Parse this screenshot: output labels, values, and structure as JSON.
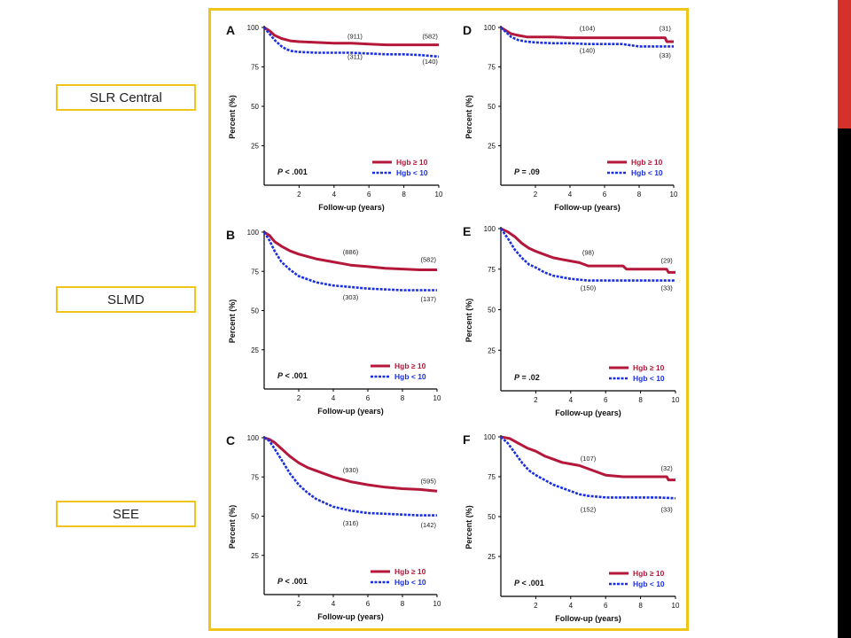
{
  "side_labels": [
    "SLR Central",
    "SLMD",
    "SEE"
  ],
  "colors": {
    "frame": "#f0c419",
    "hgb_high": "#b5173a",
    "hgb_low": "#1a2fe0",
    "accent_red": "#d6302b"
  },
  "legend": {
    "high": "Hgb ≥ 10",
    "low": "Hgb < 10"
  },
  "chart_data": [
    {
      "panel": "A",
      "type": "line",
      "xlabel": "Follow-up (years)",
      "ylabel": "Percent (%)",
      "xlim": [
        0,
        10
      ],
      "ylim": [
        0,
        100
      ],
      "xticks": [
        2,
        4,
        6,
        8,
        10
      ],
      "yticks": [
        25,
        50,
        75,
        100
      ],
      "p_value": ".001",
      "p_prefix": "P < ",
      "series": [
        {
          "name": "Hgb ≥ 10",
          "x": [
            0,
            0.3,
            0.6,
            1,
            1.5,
            2,
            3,
            4,
            5,
            6,
            7,
            8,
            9,
            10
          ],
          "y": [
            100,
            98,
            95,
            93,
            91.5,
            91,
            90.5,
            90,
            90,
            89.5,
            89,
            89,
            89,
            89
          ]
        },
        {
          "name": "Hgb < 10",
          "x": [
            0,
            0.3,
            0.6,
            1,
            1.3,
            1.6,
            2,
            3,
            4,
            5,
            6,
            7,
            8,
            9,
            10
          ],
          "y": [
            100,
            96,
            92,
            88,
            86,
            85,
            84.5,
            84,
            84,
            84,
            83.5,
            83,
            83,
            82.5,
            81.5
          ]
        }
      ],
      "annotations": [
        {
          "text": "(911)",
          "x": 5.2,
          "y": 93
        },
        {
          "text": "(582)",
          "x": 9.5,
          "y": 93
        },
        {
          "text": "(311)",
          "x": 5.2,
          "y": 80
        },
        {
          "text": "(140)",
          "x": 9.5,
          "y": 77
        }
      ]
    },
    {
      "panel": "D",
      "type": "line",
      "xlabel": "Follow-up (years)",
      "ylabel": "Percent (%)",
      "xlim": [
        0,
        10
      ],
      "ylim": [
        0,
        100
      ],
      "xticks": [
        2,
        4,
        6,
        8,
        10
      ],
      "yticks": [
        25,
        50,
        75,
        100
      ],
      "p_value": ".09",
      "p_prefix": "P = ",
      "series": [
        {
          "name": "Hgb ≥ 10",
          "x": [
            0,
            0.3,
            0.6,
            1,
            1.5,
            2,
            3,
            4,
            5,
            6,
            7,
            8,
            9,
            9.5,
            9.6,
            10
          ],
          "y": [
            100,
            98,
            96,
            95,
            94,
            94,
            94,
            93.5,
            93.5,
            93.5,
            93.5,
            93.5,
            93.5,
            93.5,
            91,
            91
          ]
        },
        {
          "name": "Hgb < 10",
          "x": [
            0,
            0.3,
            0.6,
            1,
            1.5,
            2,
            3,
            4,
            5,
            6,
            7,
            8,
            9,
            10
          ],
          "y": [
            100,
            97,
            94,
            92,
            91,
            90.5,
            90,
            90,
            89.5,
            89.5,
            89.5,
            88,
            88,
            88
          ]
        }
      ],
      "annotations": [
        {
          "text": "(104)",
          "x": 5,
          "y": 98
        },
        {
          "text": "(31)",
          "x": 9.5,
          "y": 98
        },
        {
          "text": "(140)",
          "x": 5,
          "y": 84
        },
        {
          "text": "(33)",
          "x": 9.5,
          "y": 81
        }
      ]
    },
    {
      "panel": "B",
      "type": "line",
      "xlabel": "Follow-up (years)",
      "ylabel": "Percent (%)",
      "xlim": [
        0,
        10
      ],
      "ylim": [
        0,
        100
      ],
      "xticks": [
        2,
        4,
        6,
        8,
        10
      ],
      "yticks": [
        25,
        50,
        75,
        100
      ],
      "p_value": ".001",
      "p_prefix": "P < ",
      "series": [
        {
          "name": "Hgb ≥ 10",
          "x": [
            0,
            0.3,
            0.6,
            1,
            1.5,
            2,
            3,
            4,
            5,
            6,
            7,
            8,
            9,
            10
          ],
          "y": [
            100,
            98,
            94,
            91,
            88,
            86,
            83,
            81,
            79,
            78,
            77,
            76.5,
            76,
            76
          ]
        },
        {
          "name": "Hgb < 10",
          "x": [
            0,
            0.3,
            0.6,
            1,
            1.5,
            2,
            3,
            4,
            5,
            6,
            7,
            8,
            9,
            10
          ],
          "y": [
            100,
            95,
            88,
            81,
            76,
            72,
            68,
            66,
            65,
            64,
            63.5,
            63,
            63,
            63
          ]
        }
      ],
      "annotations": [
        {
          "text": "(886)",
          "x": 5,
          "y": 86
        },
        {
          "text": "(582)",
          "x": 9.5,
          "y": 81
        },
        {
          "text": "(303)",
          "x": 5,
          "y": 57
        },
        {
          "text": "(137)",
          "x": 9.5,
          "y": 56
        }
      ]
    },
    {
      "panel": "E",
      "type": "line",
      "xlabel": "Follow-up (years)",
      "ylabel": "Percent (%)",
      "xlim": [
        0,
        10
      ],
      "ylim": [
        0,
        100
      ],
      "xticks": [
        2,
        4,
        6,
        8,
        10
      ],
      "yticks": [
        25,
        50,
        75,
        100
      ],
      "p_value": ".02",
      "p_prefix": "P = ",
      "series": [
        {
          "name": "Hgb ≥ 10",
          "x": [
            0,
            0.4,
            0.8,
            1.2,
            1.6,
            2,
            2.5,
            3,
            3.5,
            4,
            4.5,
            5,
            6,
            7,
            7.2,
            8,
            9,
            9.5,
            9.6,
            10
          ],
          "y": [
            100,
            98,
            95,
            91,
            88,
            86,
            84,
            82,
            81,
            80,
            79,
            77,
            77,
            77,
            75,
            75,
            75,
            75,
            73,
            73
          ]
        },
        {
          "name": "Hgb < 10",
          "x": [
            0,
            0.4,
            0.8,
            1.2,
            1.6,
            2,
            2.5,
            3,
            3.5,
            4,
            5,
            6,
            7,
            8,
            9,
            10
          ],
          "y": [
            100,
            94,
            87,
            82,
            78,
            76,
            73,
            71,
            70,
            69,
            68,
            68,
            68,
            68,
            68,
            68
          ]
        }
      ],
      "annotations": [
        {
          "text": "(98)",
          "x": 5,
          "y": 84
        },
        {
          "text": "(29)",
          "x": 9.5,
          "y": 79
        },
        {
          "text": "(150)",
          "x": 5,
          "y": 62
        },
        {
          "text": "(33)",
          "x": 9.5,
          "y": 62
        }
      ]
    },
    {
      "panel": "C",
      "type": "line",
      "xlabel": "Follow-up (years)",
      "ylabel": "Percent (%)",
      "xlim": [
        0,
        10
      ],
      "ylim": [
        0,
        100
      ],
      "xticks": [
        2,
        4,
        6,
        8,
        10
      ],
      "yticks": [
        25,
        50,
        75,
        100
      ],
      "p_value": ".001",
      "p_prefix": "P < ",
      "series": [
        {
          "name": "Hgb ≥ 10",
          "x": [
            0,
            0.3,
            0.6,
            1,
            1.5,
            2,
            2.5,
            3,
            4,
            5,
            6,
            7,
            8,
            9,
            10
          ],
          "y": [
            100,
            99,
            97,
            93,
            88,
            84,
            81,
            79,
            75,
            72,
            70,
            68.5,
            67.5,
            67,
            66
          ]
        },
        {
          "name": "Hgb < 10",
          "x": [
            0,
            0.3,
            0.6,
            1,
            1.5,
            2,
            2.5,
            3,
            4,
            5,
            6,
            7,
            8,
            9,
            10
          ],
          "y": [
            100,
            98,
            93,
            86,
            77,
            70,
            65,
            61,
            56,
            53.5,
            52,
            51.5,
            51,
            50.5,
            50.5
          ]
        }
      ],
      "annotations": [
        {
          "text": "(930)",
          "x": 5,
          "y": 78
        },
        {
          "text": "(595)",
          "x": 9.5,
          "y": 71
        },
        {
          "text": "(316)",
          "x": 5,
          "y": 44
        },
        {
          "text": "(142)",
          "x": 9.5,
          "y": 43
        }
      ]
    },
    {
      "panel": "F",
      "type": "line",
      "xlabel": "Follow-up (years)",
      "ylabel": "Percent (%)",
      "xlim": [
        0,
        10
      ],
      "ylim": [
        0,
        100
      ],
      "xticks": [
        2,
        4,
        6,
        8,
        10
      ],
      "yticks": [
        25,
        50,
        75,
        100
      ],
      "p_value": ".001",
      "p_prefix": "P < ",
      "series": [
        {
          "name": "Hgb ≥ 10",
          "x": [
            0,
            0.5,
            1,
            1.5,
            2,
            2.5,
            3,
            3.5,
            4,
            4.5,
            5,
            5.5,
            6,
            7,
            8,
            9,
            9.5,
            9.6,
            10
          ],
          "y": [
            100,
            99,
            96,
            93,
            91,
            88,
            86,
            84,
            83,
            82,
            80,
            78,
            76,
            75,
            75,
            75,
            75,
            73,
            73
          ]
        },
        {
          "name": "Hgb < 10",
          "x": [
            0,
            0.4,
            0.8,
            1.2,
            1.6,
            2,
            2.5,
            3,
            3.5,
            4,
            4.5,
            5,
            6,
            7,
            8,
            9,
            10
          ],
          "y": [
            100,
            96,
            90,
            84,
            79,
            76,
            73,
            70,
            68,
            66,
            64,
            63,
            62,
            62,
            62,
            62,
            61.5
          ]
        }
      ],
      "annotations": [
        {
          "text": "(107)",
          "x": 5,
          "y": 85
        },
        {
          "text": "(32)",
          "x": 9.5,
          "y": 79
        },
        {
          "text": "(152)",
          "x": 5,
          "y": 53
        },
        {
          "text": "(33)",
          "x": 9.5,
          "y": 53
        }
      ]
    }
  ]
}
